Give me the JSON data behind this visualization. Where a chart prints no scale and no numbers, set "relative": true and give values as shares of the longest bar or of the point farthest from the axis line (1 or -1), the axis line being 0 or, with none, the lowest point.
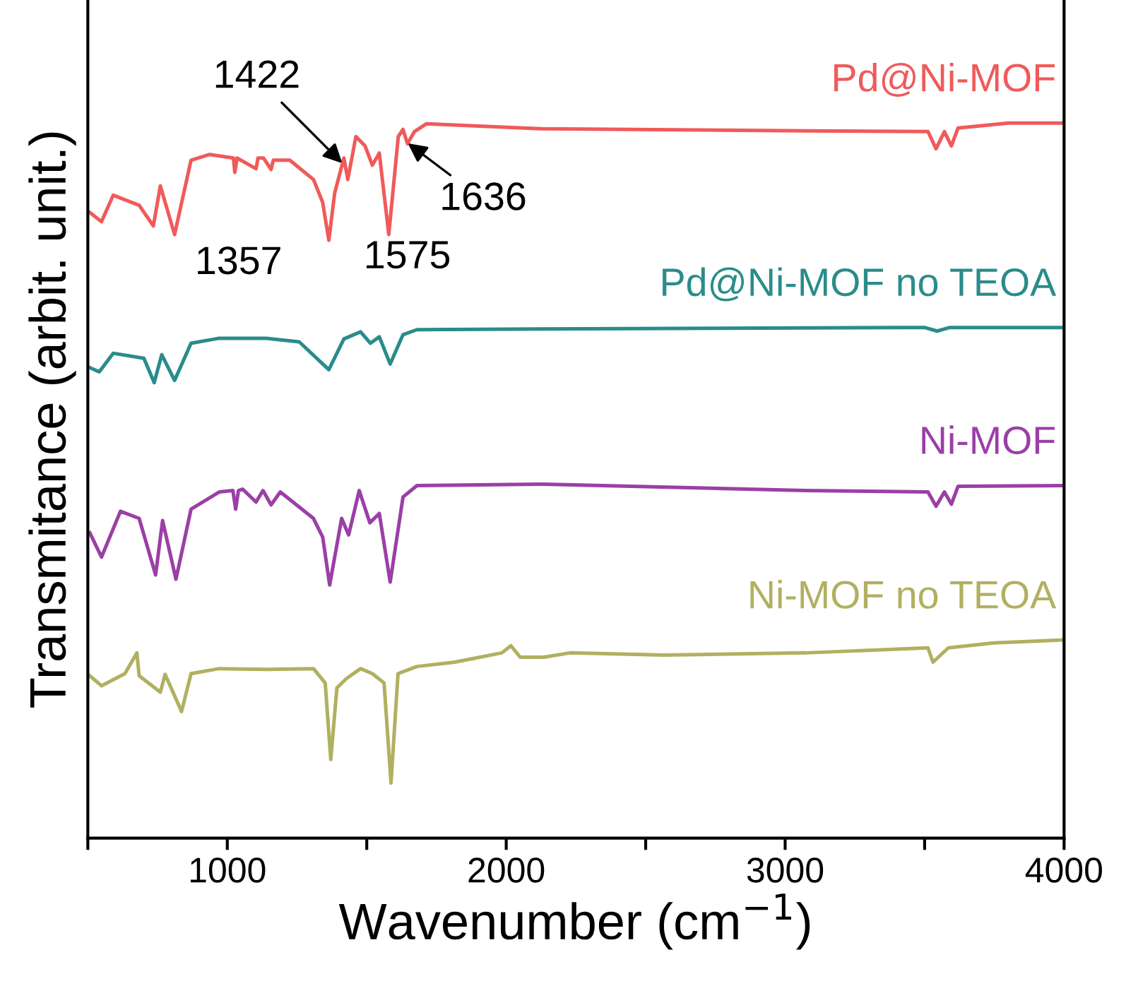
{
  "chart_data": {
    "type": "line",
    "relative": true,
    "xlabel": "Wavenumber (cm$^{−1}$)",
    "ylabel": "Transmitance (arbit. unit.)",
    "xlim": [
      500,
      4000
    ],
    "xticks": [
      {
        "value": 500,
        "label": null
      },
      1000,
      {
        "value": 1500,
        "label": null
      },
      2000,
      {
        "value": 2500,
        "label": null
      },
      3000,
      {
        "value": 3500,
        "label": null
      },
      4000
    ],
    "tick_labels": "x",
    "legend": false,
    "grid": false,
    "marker": "none",
    "line_style": "solid",
    "series": [
      {
        "name": "Pd@Ni-MOF",
        "color": "#f05a5a",
        "x": [
          507,
          549,
          591,
          684,
          735,
          760,
          811,
          870,
          937,
          1022,
          1027,
          1035,
          1103,
          1110,
          1130,
          1157,
          1165,
          1224,
          1309,
          1342,
          1364,
          1385,
          1418,
          1432,
          1461,
          1494,
          1520,
          1545,
          1579,
          1613,
          1630,
          1646,
          1671,
          1714,
          2126,
          3073,
          3512,
          3541,
          3571,
          3596,
          3620,
          3800,
          4000
        ],
        "values": [
          0.875,
          0.862,
          0.899,
          0.885,
          0.856,
          0.912,
          0.844,
          0.948,
          0.956,
          0.951,
          0.931,
          0.951,
          0.936,
          0.951,
          0.951,
          0.935,
          0.948,
          0.948,
          0.921,
          0.889,
          0.836,
          0.902,
          0.951,
          0.921,
          0.981,
          0.968,
          0.941,
          0.958,
          0.844,
          0.981,
          0.991,
          0.971,
          0.988,
          0.999,
          0.992,
          0.989,
          0.988,
          0.964,
          0.988,
          0.968,
          0.993,
          1.0,
          1.0
        ]
      },
      {
        "name": "Pd@Ni-MOF no TEOA",
        "color": "#2a8c8a",
        "x": [
          507,
          541,
          591,
          701,
          738,
          765,
          811,
          870,
          971,
          1140,
          1258,
          1364,
          1418,
          1478,
          1513,
          1545,
          1584,
          1630,
          1680,
          2126,
          3500,
          3545,
          3590,
          4000
        ],
        "values": [
          0.658,
          0.652,
          0.678,
          0.671,
          0.637,
          0.676,
          0.64,
          0.692,
          0.699,
          0.699,
          0.694,
          0.655,
          0.698,
          0.708,
          0.692,
          0.701,
          0.663,
          0.704,
          0.711,
          0.712,
          0.714,
          0.709,
          0.714,
          0.714
        ]
      },
      {
        "name": "Ni-MOF",
        "color": "#9b3fa6",
        "x": [
          507,
          549,
          617,
          684,
          743,
          768,
          816,
          870,
          971,
          1020,
          1030,
          1040,
          1055,
          1103,
          1128,
          1157,
          1190,
          1309,
          1342,
          1367,
          1410,
          1435,
          1473,
          1511,
          1545,
          1584,
          1630,
          1680,
          2134,
          3073,
          3512,
          3541,
          3571,
          3596,
          3620,
          4000
        ],
        "values": [
          0.427,
          0.393,
          0.457,
          0.447,
          0.368,
          0.444,
          0.362,
          0.46,
          0.484,
          0.486,
          0.46,
          0.486,
          0.488,
          0.47,
          0.486,
          0.466,
          0.484,
          0.447,
          0.421,
          0.354,
          0.447,
          0.424,
          0.486,
          0.441,
          0.454,
          0.358,
          0.477,
          0.493,
          0.495,
          0.486,
          0.484,
          0.464,
          0.484,
          0.467,
          0.492,
          0.493
        ]
      },
      {
        "name": "Ni-MOF no TEOA",
        "color": "#b0b060",
        "x": [
          507,
          549,
          633,
          676,
          684,
          760,
          777,
          836,
          870,
          971,
          1140,
          1309,
          1351,
          1371,
          1393,
          1427,
          1478,
          1520,
          1562,
          1587,
          1612,
          1680,
          1815,
          1984,
          2017,
          2050,
          2134,
          2229,
          2567,
          3073,
          3512,
          3530,
          3585,
          3748,
          4000
        ],
        "values": [
          0.227,
          0.213,
          0.23,
          0.259,
          0.227,
          0.204,
          0.229,
          0.177,
          0.23,
          0.237,
          0.236,
          0.237,
          0.217,
          0.11,
          0.21,
          0.223,
          0.237,
          0.23,
          0.217,
          0.077,
          0.23,
          0.24,
          0.246,
          0.259,
          0.269,
          0.253,
          0.253,
          0.259,
          0.256,
          0.259,
          0.266,
          0.246,
          0.266,
          0.273,
          0.277
        ]
      }
    ],
    "annotations": [
      {
        "text": "1422",
        "x": 1422,
        "y": 0.94
      },
      {
        "text": "1357",
        "x": 1357,
        "y": 0.836
      },
      {
        "text": "1575",
        "x": 1575,
        "y": 0.844
      },
      {
        "text": "1636",
        "x": 1636,
        "y": 0.975
      }
    ]
  }
}
